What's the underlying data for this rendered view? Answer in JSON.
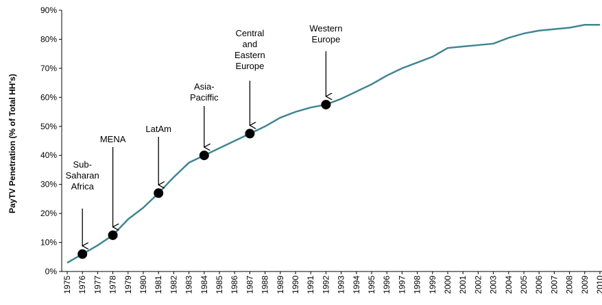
{
  "chart_data": {
    "type": "line",
    "y_axis_label": "PayTV Penetration (% of Total HH's)",
    "categories": [
      "1975",
      "1976",
      "1977",
      "1978",
      "1979",
      "1980",
      "1981",
      "1982",
      "1983",
      "1984",
      "1985",
      "1986",
      "1987",
      "1988",
      "1989",
      "1990",
      "1991",
      "1992",
      "1993",
      "1994",
      "1995",
      "1996",
      "1997",
      "1998",
      "1999",
      "2000",
      "2001",
      "2002",
      "2003",
      "2004",
      "2005",
      "2006",
      "2007",
      "2008",
      "2009",
      "2010"
    ],
    "series": [
      {
        "color": "#3f8592",
        "values": [
          3,
          6,
          9,
          12.5,
          18,
          22,
          27,
          32.5,
          37.5,
          40,
          42.5,
          45,
          47.5,
          50,
          53,
          55,
          56.5,
          57.5,
          59.5,
          62,
          64.5,
          67.5,
          70,
          72,
          74,
          77,
          77.5,
          78,
          78.5,
          80.5,
          82,
          83,
          83.5,
          84,
          85,
          85
        ]
      }
    ],
    "ylim": [
      0,
      90
    ],
    "yticks": [
      {
        "value": 0,
        "label": "0%"
      },
      {
        "value": 10,
        "label": "10%"
      },
      {
        "value": 20,
        "label": "20%"
      },
      {
        "value": 30,
        "label": "30%"
      },
      {
        "value": 40,
        "label": "40%"
      },
      {
        "value": 50,
        "label": "50%"
      },
      {
        "value": 60,
        "label": "60%"
      },
      {
        "value": 70,
        "label": "70%"
      },
      {
        "value": 80,
        "label": "80%"
      },
      {
        "value": 90,
        "label": "90%"
      }
    ],
    "annotations": [
      {
        "x": "1976",
        "lines": [
          "Sub-",
          "Saharan",
          "Africa"
        ]
      },
      {
        "x": "1978",
        "lines": [
          "MENA"
        ]
      },
      {
        "x": "1981",
        "lines": [
          "LatAm"
        ]
      },
      {
        "x": "1984",
        "lines": [
          "Asia-",
          "Paciffic"
        ]
      },
      {
        "x": "1987",
        "lines": [
          "Central",
          "and",
          "Eastern",
          "Europe"
        ]
      },
      {
        "x": "1992",
        "lines": [
          "Western",
          "Europe"
        ]
      }
    ]
  }
}
